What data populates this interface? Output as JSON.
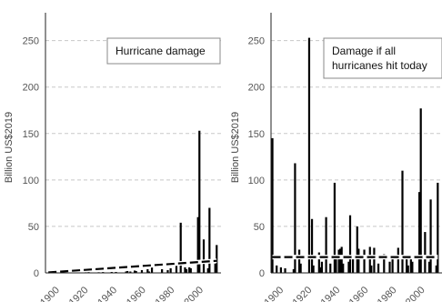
{
  "chart_data": [
    {
      "type": "bar",
      "annotation": [
        "Hurricane damage"
      ],
      "ylabel": "Billion US$2019",
      "xlim": [
        1898,
        2020
      ],
      "ylim": [
        0,
        280
      ],
      "yticks": [
        0,
        50,
        100,
        150,
        200,
        250
      ],
      "xticks": [
        1900,
        1920,
        1940,
        1960,
        1980,
        2000
      ],
      "grid": true,
      "values": {
        "x": [
          1900,
          1906,
          1915,
          1919,
          1926,
          1928,
          1935,
          1938,
          1944,
          1947,
          1954,
          1955,
          1957,
          1960,
          1961,
          1965,
          1969,
          1970,
          1972,
          1979,
          1983,
          1985,
          1989,
          1992,
          1995,
          1996,
          1998,
          1999,
          2004,
          2005,
          2008,
          2011,
          2012,
          2016,
          2017
        ],
        "y": [
          0.5,
          0.5,
          0.5,
          0.5,
          0.7,
          0.8,
          0.7,
          0.9,
          1,
          1,
          1.5,
          2,
          1.5,
          2.5,
          2,
          3,
          4,
          1.5,
          8,
          4,
          3,
          5,
          11,
          54,
          6,
          4,
          6,
          5,
          60,
          153,
          36,
          5,
          70,
          10,
          30
        ]
      },
      "trend": {
        "x": [
          1900,
          2017
        ],
        "y": [
          0.5,
          13
        ]
      }
    },
    {
      "type": "bar",
      "annotation": [
        "Damage if all",
        "hurricanes hit today"
      ],
      "ylabel": "Billion US$2019",
      "xlim": [
        1899,
        2020
      ],
      "ylim": [
        0,
        280
      ],
      "yticks": [
        0,
        50,
        100,
        150,
        200,
        250
      ],
      "xticks": [
        1900,
        1920,
        1940,
        1960,
        1980,
        2000
      ],
      "grid": true,
      "values": {
        "x": [
          1900,
          1903,
          1906,
          1909,
          1915,
          1916,
          1919,
          1920,
          1926,
          1928,
          1929,
          1933,
          1934,
          1935,
          1938,
          1941,
          1944,
          1945,
          1947,
          1948,
          1949,
          1950,
          1954,
          1955,
          1957,
          1960,
          1961,
          1965,
          1969,
          1970,
          1972,
          1975,
          1979,
          1983,
          1985,
          1989,
          1992,
          1995,
          1996,
          1998,
          1999,
          2004,
          2005,
          2008,
          2011,
          2012,
          2016,
          2017
        ],
        "y": [
          145,
          8,
          6,
          5,
          4,
          118,
          25,
          10,
          253,
          58,
          8,
          22,
          6,
          12,
          60,
          10,
          97,
          18,
          25,
          26,
          28,
          10,
          12,
          62,
          15,
          50,
          26,
          25,
          28,
          8,
          27,
          10,
          20,
          12,
          18,
          27,
          110,
          18,
          8,
          15,
          12,
          87,
          177,
          44,
          12,
          79,
          8,
          97
        ]
      },
      "trend": {
        "x": [
          1900,
          2017
        ],
        "y": [
          17,
          17
        ]
      }
    }
  ]
}
